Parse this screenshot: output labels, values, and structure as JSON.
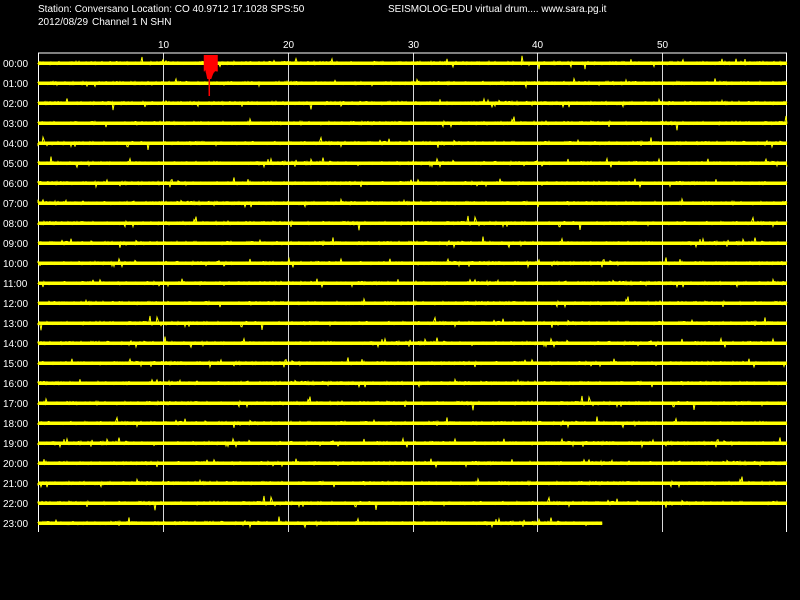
{
  "header": {
    "station_line": "Station: Conversano Location: CO 40.9712 17.1028 SPS:50",
    "date": "2012/08/29",
    "channel": "Channel 1 N SHN",
    "title_right": "SEISMOLOG-EDU virtual drum.... www.sara.pg.it"
  },
  "colors": {
    "background": "#000000",
    "text": "#ffffff",
    "grid": "#ffffff",
    "trace": "#ffff00",
    "event": "#ff0000"
  },
  "chart_data": {
    "type": "line",
    "title": "",
    "xlabel": "",
    "ylabel": "",
    "x_unit_ticks": [
      10,
      20,
      30,
      40,
      50
    ],
    "xlim": [
      0,
      60
    ],
    "grid": true,
    "rows": [
      {
        "label": "00:00",
        "end_minute": 60
      },
      {
        "label": "01:00",
        "end_minute": 60
      },
      {
        "label": "02:00",
        "end_minute": 60
      },
      {
        "label": "03:00",
        "end_minute": 60
      },
      {
        "label": "04:00",
        "end_minute": 60
      },
      {
        "label": "05:00",
        "end_minute": 60
      },
      {
        "label": "06:00",
        "end_minute": 60
      },
      {
        "label": "07:00",
        "end_minute": 60
      },
      {
        "label": "08:00",
        "end_minute": 60
      },
      {
        "label": "09:00",
        "end_minute": 60
      },
      {
        "label": "10:00",
        "end_minute": 60
      },
      {
        "label": "11:00",
        "end_minute": 60
      },
      {
        "label": "12:00",
        "end_minute": 60
      },
      {
        "label": "13:00",
        "end_minute": 60
      },
      {
        "label": "14:00",
        "end_minute": 60
      },
      {
        "label": "15:00",
        "end_minute": 60
      },
      {
        "label": "16:00",
        "end_minute": 60
      },
      {
        "label": "17:00",
        "end_minute": 60
      },
      {
        "label": "18:00",
        "end_minute": 60
      },
      {
        "label": "19:00",
        "end_minute": 60
      },
      {
        "label": "20:00",
        "end_minute": 60
      },
      {
        "label": "21:00",
        "end_minute": 60
      },
      {
        "label": "22:00",
        "end_minute": 60
      },
      {
        "label": "23:00",
        "end_minute": 45.2
      }
    ],
    "event": {
      "row_label": "00:00",
      "minute": 13.8
    }
  }
}
